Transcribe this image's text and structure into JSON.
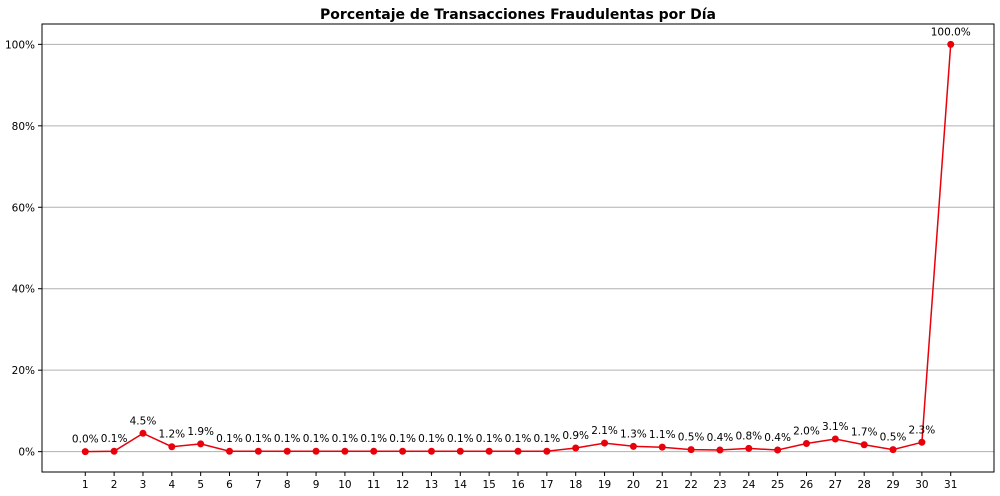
{
  "chart_data": {
    "type": "line",
    "title": "Porcentaje de Transacciones Fraudulentas por Día",
    "xlabel": "",
    "ylabel": "",
    "x": [
      1,
      2,
      3,
      4,
      5,
      6,
      7,
      8,
      9,
      10,
      11,
      12,
      13,
      14,
      15,
      16,
      17,
      18,
      19,
      20,
      21,
      22,
      23,
      24,
      25,
      26,
      27,
      28,
      29,
      30,
      31
    ],
    "series": [
      {
        "values": [
          0.0,
          0.1,
          4.5,
          1.2,
          1.9,
          0.1,
          0.1,
          0.1,
          0.1,
          0.1,
          0.1,
          0.1,
          0.1,
          0.1,
          0.1,
          0.1,
          0.1,
          0.9,
          2.1,
          1.3,
          1.1,
          0.5,
          0.4,
          0.8,
          0.4,
          2.0,
          3.1,
          1.7,
          0.5,
          2.3,
          100.0
        ],
        "data_labels": [
          "0.0%",
          "0.1%",
          "4.5%",
          "1.2%",
          "1.9%",
          "0.1%",
          "0.1%",
          "0.1%",
          "0.1%",
          "0.1%",
          "0.1%",
          "0.1%",
          "0.1%",
          "0.1%",
          "0.1%",
          "0.1%",
          "0.1%",
          "0.9%",
          "2.1%",
          "1.3%",
          "1.1%",
          "0.5%",
          "0.4%",
          "0.8%",
          "0.4%",
          "2.0%",
          "3.1%",
          "1.7%",
          "0.5%",
          "2.3%",
          "100.0%"
        ],
        "color": "#e8000b"
      }
    ],
    "y_ticks": [
      0,
      20,
      40,
      60,
      80,
      100
    ],
    "y_tick_labels": [
      "0%",
      "20%",
      "40%",
      "60%",
      "80%",
      "100%"
    ],
    "ylim": [
      -5,
      105
    ],
    "xlim": [
      -0.5,
      32.5
    ],
    "grid": "y",
    "legend": "none",
    "marker": "circle"
  }
}
